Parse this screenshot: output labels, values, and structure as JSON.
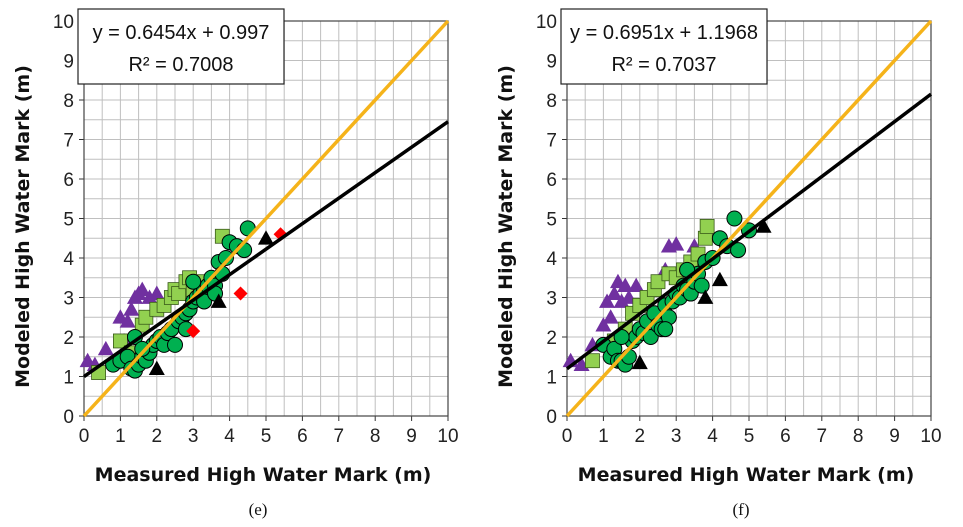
{
  "chart_data": [
    {
      "type": "scatter",
      "panel_label": "(e)",
      "xlabel": "Measured High Water Mark (m)",
      "ylabel": "Modeled High Water Mark (m)",
      "xlim": [
        0,
        10
      ],
      "ylim": [
        0,
        10
      ],
      "xticks": [
        "0",
        "1",
        "2",
        "3",
        "4",
        "5",
        "6",
        "7",
        "8",
        "9",
        "10"
      ],
      "yticks": [
        "0",
        "1",
        "2",
        "3",
        "4",
        "5",
        "6",
        "7",
        "8",
        "9",
        "10"
      ],
      "grid": true,
      "equation": "y = 0.6454x + 0.997",
      "r_squared": "R² = 0.7008",
      "fit_line": {
        "slope": 0.6454,
        "intercept": 0.997,
        "color": "#000000"
      },
      "one_to_one_line": {
        "color": "#f5b31a"
      },
      "series": [
        {
          "marker": "triangle",
          "color": "#7030a0",
          "points": [
            [
              0.3,
              1.3
            ],
            [
              0.6,
              1.7
            ],
            [
              1.0,
              2.5
            ],
            [
              1.2,
              2.4
            ],
            [
              1.3,
              2.7
            ],
            [
              1.4,
              3.0
            ],
            [
              1.5,
              3.1
            ],
            [
              1.6,
              3.2
            ],
            [
              1.8,
              3.0
            ],
            [
              2.0,
              3.1
            ],
            [
              1.1,
              1.9
            ],
            [
              0.1,
              1.4
            ]
          ]
        },
        {
          "marker": "square",
          "color": "#92d050",
          "points": [
            [
              0.4,
              1.1
            ],
            [
              1.0,
              1.9
            ],
            [
              1.3,
              1.6
            ],
            [
              1.6,
              2.3
            ],
            [
              1.7,
              2.5
            ],
            [
              2.0,
              2.7
            ],
            [
              2.2,
              2.8
            ],
            [
              2.4,
              3.0
            ],
            [
              2.5,
              3.2
            ],
            [
              2.6,
              3.1
            ],
            [
              2.8,
              3.4
            ],
            [
              2.9,
              3.5
            ],
            [
              3.0,
              3.2
            ],
            [
              3.2,
              3.0
            ],
            [
              3.3,
              3.4
            ],
            [
              3.8,
              4.55
            ]
          ]
        },
        {
          "marker": "circle",
          "color": "#00b050",
          "points": [
            [
              0.8,
              1.3
            ],
            [
              1.0,
              1.4
            ],
            [
              1.2,
              1.5
            ],
            [
              1.3,
              1.2
            ],
            [
              1.4,
              1.15
            ],
            [
              1.5,
              1.3
            ],
            [
              1.6,
              1.5
            ],
            [
              1.7,
              1.4
            ],
            [
              1.8,
              1.6
            ],
            [
              1.9,
              1.8
            ],
            [
              2.0,
              1.9
            ],
            [
              2.1,
              2.0
            ],
            [
              2.2,
              1.8
            ],
            [
              2.3,
              2.1
            ],
            [
              2.4,
              2.2
            ],
            [
              2.5,
              1.8
            ],
            [
              2.6,
              2.4
            ],
            [
              2.7,
              2.5
            ],
            [
              2.8,
              2.6
            ],
            [
              2.9,
              2.7
            ],
            [
              3.0,
              2.9
            ],
            [
              3.1,
              3.0
            ],
            [
              3.2,
              3.1
            ],
            [
              3.3,
              3.2
            ],
            [
              3.4,
              3.3
            ],
            [
              3.5,
              3.5
            ],
            [
              3.6,
              3.3
            ],
            [
              3.7,
              3.9
            ],
            [
              3.8,
              3.6
            ],
            [
              3.9,
              4.0
            ],
            [
              4.0,
              4.4
            ],
            [
              4.2,
              4.3
            ],
            [
              4.4,
              4.2
            ],
            [
              4.5,
              4.75
            ],
            [
              1.4,
              2.0
            ],
            [
              1.6,
              1.7
            ],
            [
              2.8,
              2.2
            ],
            [
              3.0,
              3.4
            ],
            [
              3.3,
              2.9
            ],
            [
              3.6,
              3.1
            ]
          ]
        },
        {
          "marker": "triangle",
          "color": "#000000",
          "points": [
            [
              2.0,
              1.2
            ],
            [
              3.7,
              2.9
            ],
            [
              5.0,
              4.5
            ]
          ]
        },
        {
          "marker": "diamond",
          "color": "#ff0000",
          "points": [
            [
              3.0,
              2.15
            ],
            [
              4.3,
              3.1
            ],
            [
              5.4,
              4.6
            ]
          ]
        }
      ]
    },
    {
      "type": "scatter",
      "panel_label": "(f)",
      "xlabel": "Measured High Water Mark (m)",
      "ylabel": "Modeled High Water Mark (m)",
      "xlim": [
        0,
        10
      ],
      "ylim": [
        0,
        10
      ],
      "xticks": [
        "0",
        "1",
        "2",
        "3",
        "4",
        "5",
        "6",
        "7",
        "8",
        "9",
        "10"
      ],
      "yticks": [
        "0",
        "1",
        "2",
        "3",
        "4",
        "5",
        "6",
        "7",
        "8",
        "9",
        "10"
      ],
      "grid": true,
      "equation": "y = 0.6951x + 1.1968",
      "r_squared": "R² = 0.7037",
      "fit_line": {
        "slope": 0.6951,
        "intercept": 1.1968,
        "color": "#000000"
      },
      "one_to_one_line": {
        "color": "#f5b31a"
      },
      "series": [
        {
          "marker": "triangle",
          "color": "#7030a0",
          "points": [
            [
              0.1,
              1.4
            ],
            [
              0.4,
              1.3
            ],
            [
              0.7,
              1.8
            ],
            [
              1.0,
              2.3
            ],
            [
              1.1,
              2.9
            ],
            [
              1.3,
              3.1
            ],
            [
              1.4,
              3.4
            ],
            [
              1.5,
              2.9
            ],
            [
              1.6,
              3.3
            ],
            [
              1.7,
              3.0
            ],
            [
              1.9,
              3.3
            ],
            [
              2.2,
              3.0
            ],
            [
              2.7,
              3.7
            ],
            [
              2.8,
              4.3
            ],
            [
              3.0,
              4.35
            ],
            [
              3.5,
              4.3
            ],
            [
              1.2,
              2.5
            ]
          ]
        },
        {
          "marker": "square",
          "color": "#92d050",
          "points": [
            [
              0.7,
              1.4
            ],
            [
              1.3,
              1.9
            ],
            [
              1.6,
              2.2
            ],
            [
              1.8,
              2.6
            ],
            [
              2.0,
              2.8
            ],
            [
              2.2,
              3.0
            ],
            [
              2.4,
              3.2
            ],
            [
              2.5,
              3.4
            ],
            [
              2.8,
              3.6
            ],
            [
              3.0,
              3.5
            ],
            [
              3.2,
              3.7
            ],
            [
              3.4,
              3.9
            ],
            [
              3.6,
              4.1
            ],
            [
              3.8,
              4.5
            ],
            [
              3.85,
              4.8
            ]
          ]
        },
        {
          "marker": "circle",
          "color": "#00b050",
          "points": [
            [
              1.0,
              1.8
            ],
            [
              1.2,
              1.5
            ],
            [
              1.3,
              1.7
            ],
            [
              1.4,
              1.4
            ],
            [
              1.5,
              1.4
            ],
            [
              1.6,
              1.3
            ],
            [
              1.7,
              1.5
            ],
            [
              1.8,
              1.9
            ],
            [
              1.9,
              2.0
            ],
            [
              2.0,
              2.2
            ],
            [
              2.1,
              2.1
            ],
            [
              2.2,
              2.4
            ],
            [
              2.3,
              2.0
            ],
            [
              2.4,
              2.6
            ],
            [
              2.5,
              2.3
            ],
            [
              2.6,
              2.2
            ],
            [
              2.7,
              2.8
            ],
            [
              2.8,
              2.5
            ],
            [
              2.9,
              2.9
            ],
            [
              3.0,
              3.1
            ],
            [
              3.1,
              3.0
            ],
            [
              3.2,
              3.3
            ],
            [
              3.3,
              3.2
            ],
            [
              3.4,
              3.1
            ],
            [
              3.5,
              3.4
            ],
            [
              3.6,
              3.6
            ],
            [
              3.7,
              3.3
            ],
            [
              3.8,
              3.9
            ],
            [
              4.0,
              4.0
            ],
            [
              4.2,
              4.5
            ],
            [
              4.4,
              4.3
            ],
            [
              4.6,
              5.0
            ],
            [
              4.7,
              4.2
            ],
            [
              5.0,
              4.7
            ],
            [
              1.5,
              2.0
            ],
            [
              2.7,
              2.2
            ],
            [
              3.3,
              3.7
            ]
          ]
        },
        {
          "marker": "triangle",
          "color": "#000000",
          "points": [
            [
              2.0,
              1.35
            ],
            [
              3.8,
              3.0
            ],
            [
              4.2,
              3.45
            ],
            [
              5.4,
              4.8
            ]
          ]
        }
      ]
    }
  ]
}
